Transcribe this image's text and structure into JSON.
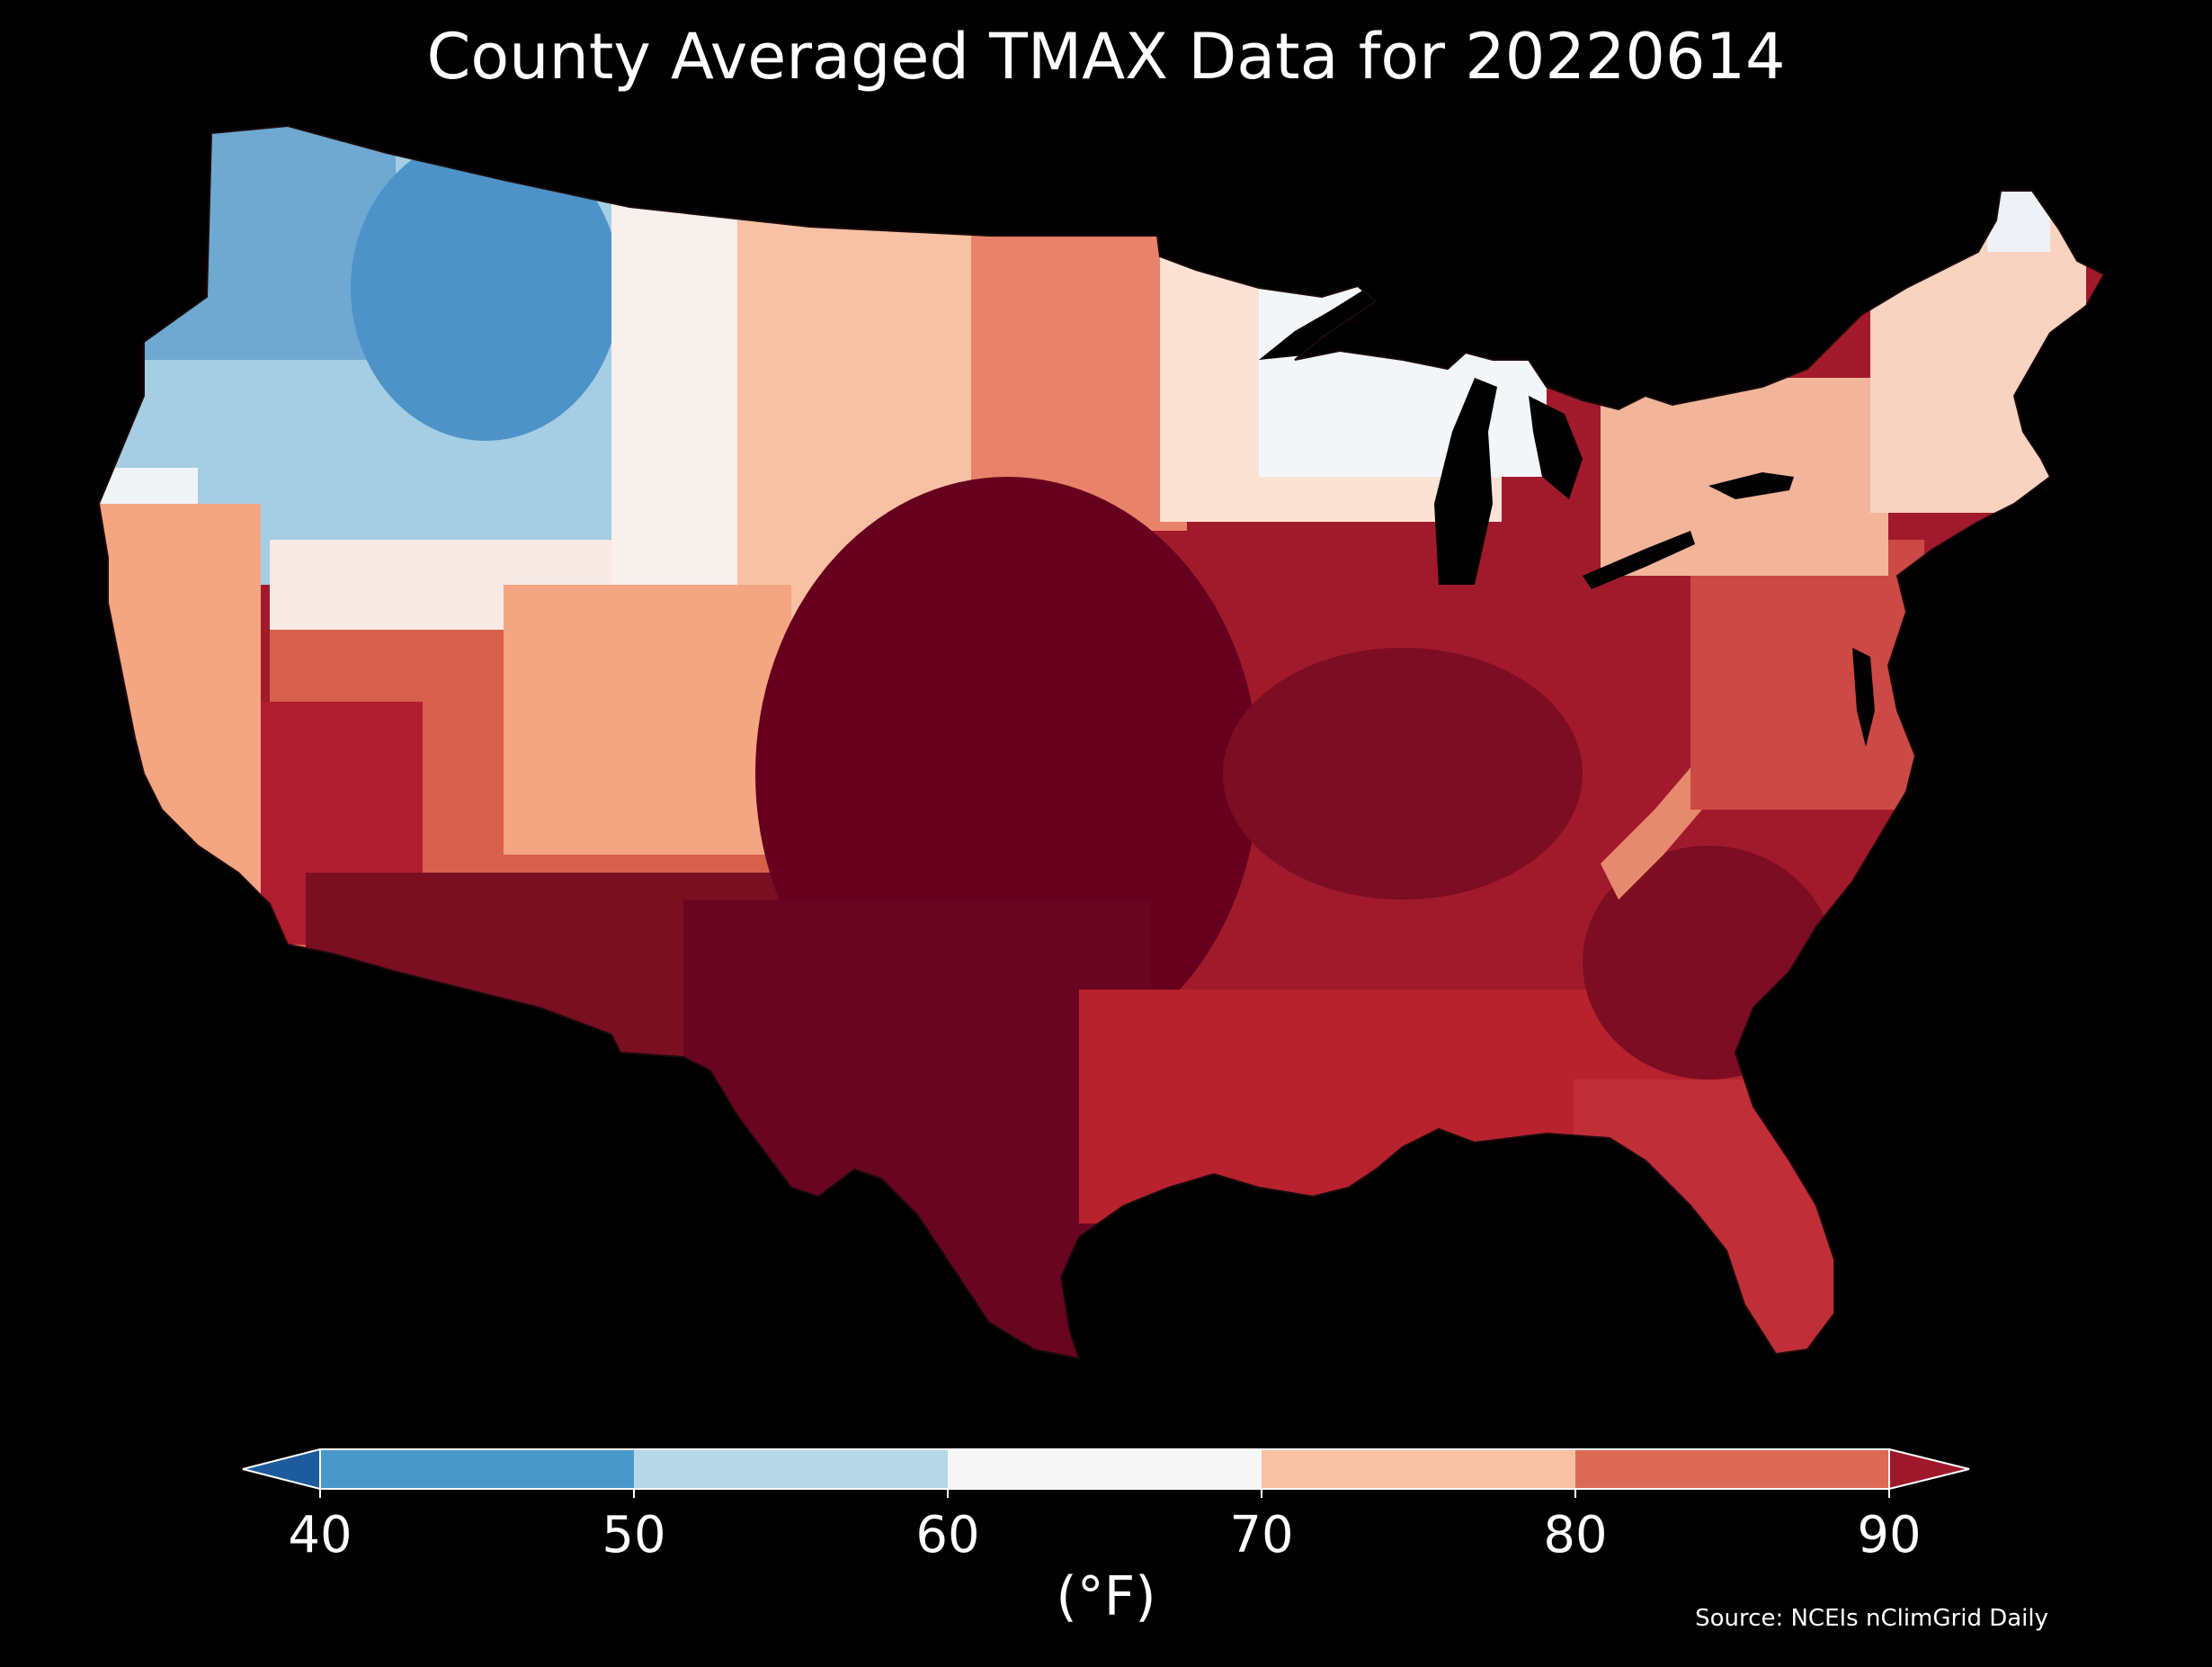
{
  "title": "County Averaged TMAX Data for 20220614",
  "colorbar": {
    "ticks": [
      "40",
      "50",
      "60",
      "70",
      "80",
      "90"
    ],
    "units_label": "(°F)",
    "bins": [
      {
        "range": "<40",
        "color": "#1c5b9c"
      },
      {
        "range": "40-50",
        "color": "#4a98c9"
      },
      {
        "range": "50-60",
        "color": "#b6d7e8"
      },
      {
        "range": "60-70",
        "color": "#f7f7f7"
      },
      {
        "range": "70-80",
        "color": "#f8c1a4"
      },
      {
        "range": "80-90",
        "color": "#dc6a57"
      },
      {
        "range": ">90",
        "color": "#9e1a2b"
      }
    ],
    "extend": "both"
  },
  "source": "Source: NCEIs nClimGrid Daily",
  "map": {
    "region": "Contiguous United States",
    "unit": "county",
    "variable": "TMAX",
    "date": "20220614",
    "ocean_color": "#000000",
    "boundary_color": "#000000",
    "regions": [
      {
        "name": "pacific-northwest",
        "color": "#6fa9d2"
      },
      {
        "name": "northern-rockies",
        "color": "#4d93c7"
      },
      {
        "name": "great-basin-north",
        "color": "#a5cde3"
      },
      {
        "name": "california-coast",
        "color": "#f0f4f7"
      },
      {
        "name": "central-valley",
        "color": "#f4a582"
      },
      {
        "name": "southern-california",
        "color": "#e98b6e"
      },
      {
        "name": "desert-southwest",
        "color": "#7a0f22"
      },
      {
        "name": "four-corners",
        "color": "#d6604d"
      },
      {
        "name": "northern-plains-west",
        "color": "#f7e9e4"
      },
      {
        "name": "northern-plains-east",
        "color": "#e9826a"
      },
      {
        "name": "central-plains",
        "color": "#67001f"
      },
      {
        "name": "texas",
        "color": "#6a0521"
      },
      {
        "name": "upper-midwest",
        "color": "#fbe2d5"
      },
      {
        "name": "great-lakes",
        "color": "#f3f6f9"
      },
      {
        "name": "midwest",
        "color": "#a11a2c"
      },
      {
        "name": "ohio-valley",
        "color": "#b52634"
      },
      {
        "name": "appalachians",
        "color": "#e58a6e"
      },
      {
        "name": "southeast",
        "color": "#a3192c"
      },
      {
        "name": "carolinas-georgia",
        "color": "#7d0d23"
      },
      {
        "name": "gulf-coast",
        "color": "#b8222f"
      },
      {
        "name": "florida",
        "color": "#c02f38"
      },
      {
        "name": "mid-atlantic",
        "color": "#cc4a45"
      },
      {
        "name": "new-york",
        "color": "#f2b59a"
      },
      {
        "name": "new-england",
        "color": "#f8d3c0"
      },
      {
        "name": "northern-maine",
        "color": "#eef2f6"
      }
    ]
  }
}
